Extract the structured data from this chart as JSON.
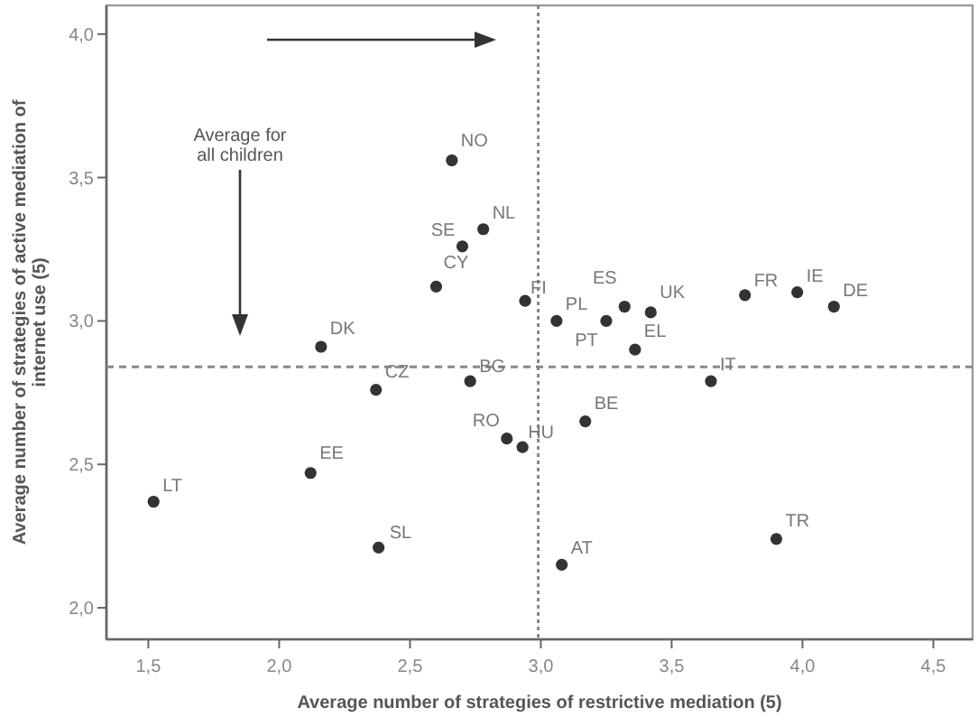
{
  "chart_data": {
    "type": "scatter",
    "xlabel": "Average number of strategies of restrictive mediation (5)",
    "ylabel": "Average number of strategies of active mediation of\ninternet use (5)",
    "x": [
      2.66,
      2.7,
      2.78,
      2.6,
      2.16,
      2.94,
      3.06,
      3.32,
      3.25,
      3.42,
      3.36,
      3.78,
      3.98,
      4.12,
      2.37,
      2.73,
      1.52,
      2.12,
      2.38,
      3.65,
      3.17,
      2.87,
      2.93,
      3.08,
      3.9
    ],
    "values": [
      3.56,
      3.26,
      3.32,
      3.12,
      2.91,
      3.07,
      3.0,
      3.05,
      3.0,
      3.03,
      2.9,
      3.09,
      3.1,
      3.05,
      2.76,
      2.79,
      2.37,
      2.47,
      2.21,
      2.79,
      2.65,
      2.59,
      2.56,
      2.15,
      2.24
    ],
    "color": "#333333",
    "marker": "circle",
    "xlim": [
      1.34,
      4.65
    ],
    "ylim": [
      1.89,
      4.1
    ],
    "xticks": [
      {
        "value": 1.5,
        "label": "1,5"
      },
      {
        "value": 2,
        "label": "2,0"
      },
      {
        "value": 2.5,
        "label": "2,5"
      },
      {
        "value": 3,
        "label": "3,0"
      },
      {
        "value": 3.5,
        "label": "3,5"
      },
      {
        "value": 4,
        "label": "4,0"
      },
      {
        "value": 4.5,
        "label": "4,5"
      }
    ],
    "yticks": [
      {
        "value": 2,
        "label": "2,0"
      },
      {
        "value": 2.5,
        "label": "2,5"
      },
      {
        "value": 3,
        "label": "3,0"
      },
      {
        "value": 3.5,
        "label": "3,5"
      },
      {
        "value": 4,
        "label": "4,0"
      }
    ],
    "ref_lines": [
      {
        "axis": "x",
        "value": 2.99,
        "line_style": "dotted",
        "color": "#888888"
      },
      {
        "axis": "y",
        "value": 2.84,
        "line_style": "dashed",
        "color": "#888888"
      }
    ],
    "annotations": [
      "Average for all children",
      {
        "text": "NO",
        "x": 2.66,
        "y": 3.56
      },
      {
        "text": "SE",
        "x": 2.7,
        "y": 3.26
      },
      {
        "text": "NL",
        "x": 2.78,
        "y": 3.32
      },
      {
        "text": "CY",
        "x": 2.6,
        "y": 3.12
      },
      {
        "text": "DK",
        "x": 2.16,
        "y": 2.91
      },
      {
        "text": "FI",
        "x": 2.94,
        "y": 3.07
      },
      {
        "text": "PL",
        "x": 3.06,
        "y": 3.0
      },
      {
        "text": "ES",
        "x": 3.32,
        "y": 3.05
      },
      {
        "text": "PT",
        "x": 3.25,
        "y": 3.0
      },
      {
        "text": "UK",
        "x": 3.42,
        "y": 3.03
      },
      {
        "text": "EL",
        "x": 3.36,
        "y": 2.9
      },
      {
        "text": "FR",
        "x": 3.78,
        "y": 3.09
      },
      {
        "text": "IE",
        "x": 3.98,
        "y": 3.1
      },
      {
        "text": "DE",
        "x": 4.12,
        "y": 3.05
      },
      {
        "text": "CZ",
        "x": 2.37,
        "y": 2.76
      },
      {
        "text": "BG",
        "x": 2.73,
        "y": 2.79
      },
      {
        "text": "LT",
        "x": 1.52,
        "y": 2.37
      },
      {
        "text": "EE",
        "x": 2.12,
        "y": 2.47
      },
      {
        "text": "SL",
        "x": 2.38,
        "y": 2.21
      },
      {
        "text": "IT",
        "x": 3.65,
        "y": 2.79
      },
      {
        "text": "BE",
        "x": 3.17,
        "y": 2.65
      },
      {
        "text": "RO",
        "x": 2.87,
        "y": 2.59
      },
      {
        "text": "HU",
        "x": 2.93,
        "y": 2.56
      },
      {
        "text": "AT",
        "x": 3.08,
        "y": 2.15
      },
      {
        "text": "TR",
        "x": 3.9,
        "y": 2.24
      }
    ]
  }
}
